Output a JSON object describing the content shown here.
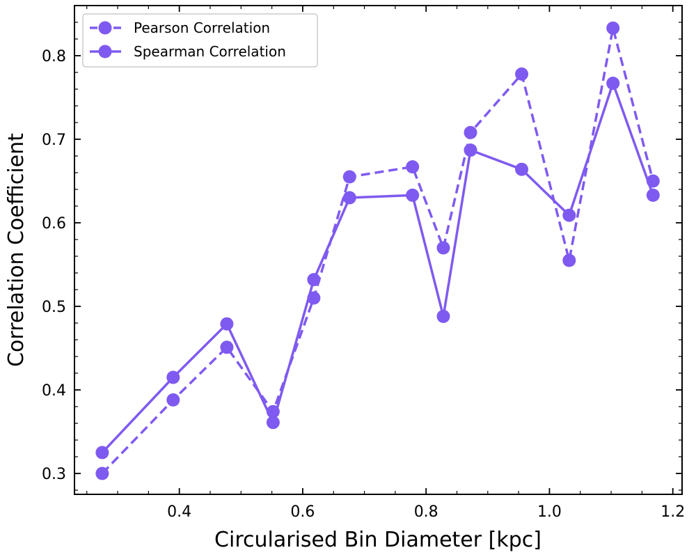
{
  "chart_data": {
    "type": "line",
    "title": "",
    "xlabel": "Circularised Bin Diameter [kpc]",
    "ylabel": "Correlation Coefficient",
    "xlim": [
      0.23,
      1.215
    ],
    "ylim": [
      0.275,
      0.86
    ],
    "xticks": [
      0.4,
      0.6,
      0.8,
      1.0,
      1.2
    ],
    "xtick_labels": [
      "0.4",
      "0.6",
      "0.8",
      "1.0",
      "1.2"
    ],
    "xminor_step": 0.05,
    "yticks": [
      0.3,
      0.4,
      0.5,
      0.6,
      0.7,
      0.8
    ],
    "ytick_labels": [
      "0.3",
      "0.4",
      "0.5",
      "0.6",
      "0.7",
      "0.8"
    ],
    "yminor_step": 0.02,
    "grid": false,
    "legend_position": "top-left",
    "series_color": "#7f5af0",
    "series": [
      {
        "name": "Pearson Correlation",
        "style": "dashed",
        "marker": "circle",
        "x": [
          0.275,
          0.39,
          0.477,
          0.552,
          0.618,
          0.676,
          0.778,
          0.828,
          0.872,
          0.955,
          1.032,
          1.103,
          1.168
        ],
        "values": [
          0.3,
          0.388,
          0.451,
          0.374,
          0.51,
          0.655,
          0.667,
          0.57,
          0.708,
          0.778,
          0.555,
          0.833,
          0.65
        ]
      },
      {
        "name": "Spearman Correlation",
        "style": "solid",
        "marker": "circle",
        "x": [
          0.275,
          0.39,
          0.477,
          0.552,
          0.618,
          0.676,
          0.778,
          0.828,
          0.872,
          0.955,
          1.032,
          1.103,
          1.168
        ],
        "values": [
          0.325,
          0.415,
          0.479,
          0.361,
          0.532,
          0.63,
          0.633,
          0.488,
          0.687,
          0.664,
          0.609,
          0.767,
          0.633
        ]
      }
    ]
  }
}
